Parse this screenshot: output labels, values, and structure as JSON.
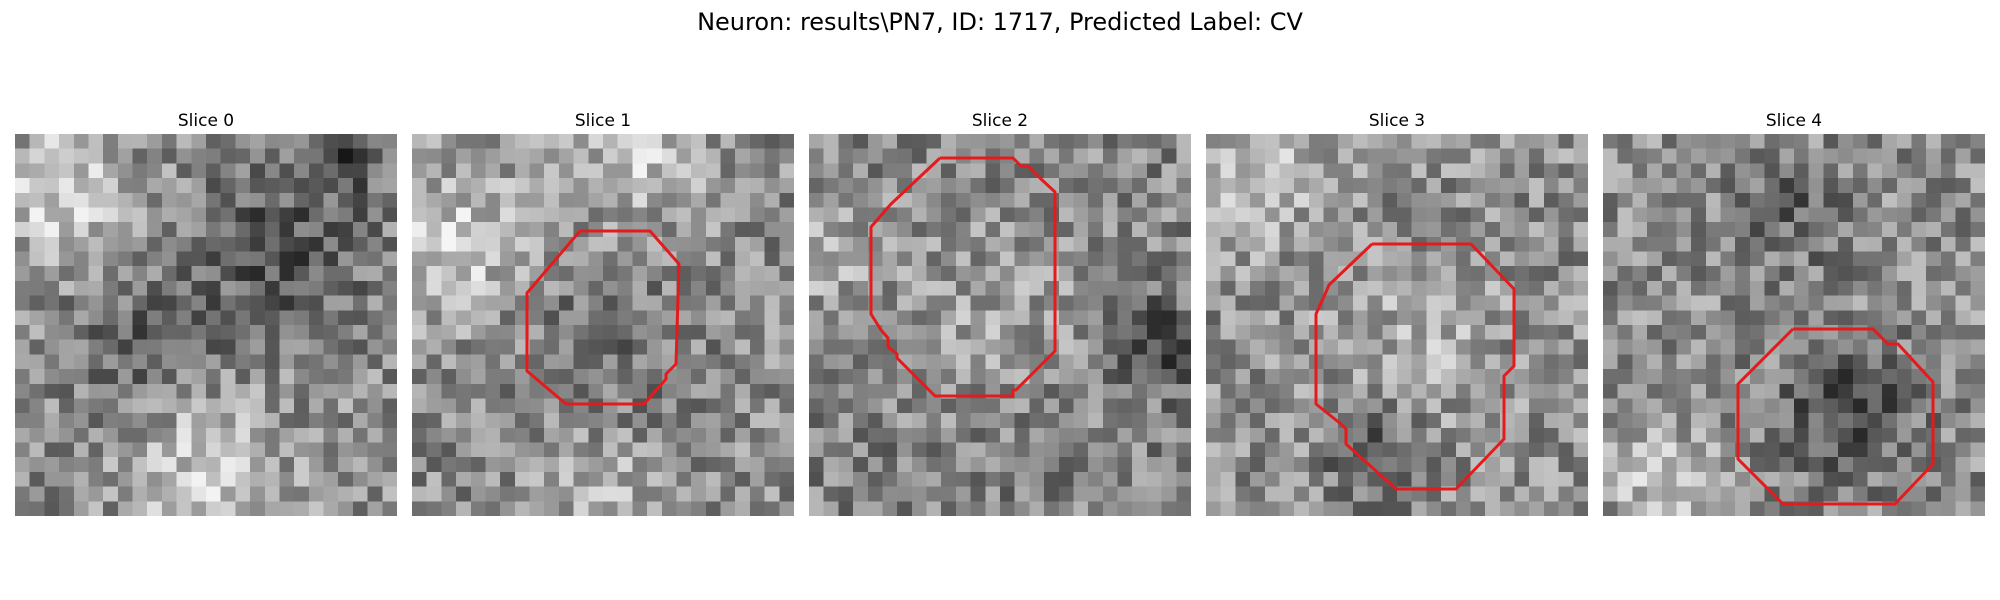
{
  "figure": {
    "title": "Neuron: results\\PN7, ID: 1717, Predicted Label: CV"
  },
  "panels": [
    {
      "title": "Slice 0",
      "contour": false,
      "seed": 11,
      "tone": "slice0"
    },
    {
      "title": "Slice 1",
      "contour": true,
      "seed": 23,
      "tone": "slice1"
    },
    {
      "title": "Slice 2",
      "contour": true,
      "seed": 37,
      "tone": "slice2"
    },
    {
      "title": "Slice 3",
      "contour": true,
      "seed": 41,
      "tone": "slice3"
    },
    {
      "title": "Slice 4",
      "contour": true,
      "seed": 59,
      "tone": "slice4"
    }
  ],
  "colors": {
    "contour": "#e41a1c",
    "background": "#ffffff"
  }
}
